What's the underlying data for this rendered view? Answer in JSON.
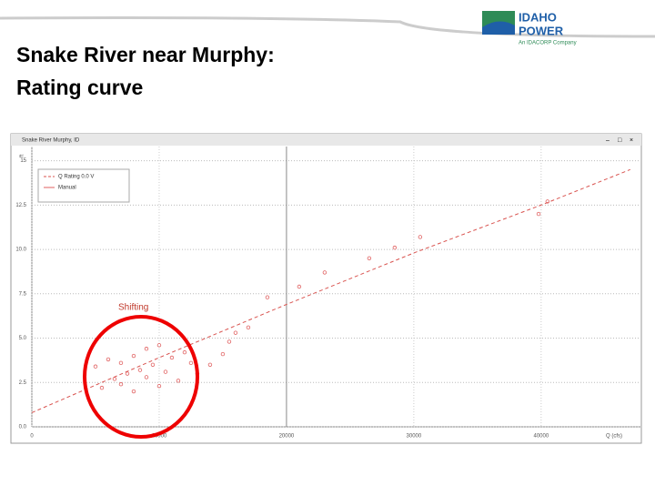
{
  "slide": {
    "title_lines": [
      "Snake River near Murphy:",
      "Rating curve"
    ],
    "logo": [
      "IDAHO",
      "POWER",
      "An IDACORP Company"
    ]
  },
  "chart_data": {
    "type": "scatter",
    "title": "Snake River Murphy, ID",
    "x_label": "Q (cfs)",
    "y_label": "ft",
    "annotation": "Shifting",
    "xlim": [
      0,
      47800
    ],
    "ylim": [
      0,
      15.8
    ],
    "xticks": [
      0,
      10000,
      20000,
      30000,
      40000
    ],
    "yticks": [
      {
        "value": 0,
        "label": "0.0"
      },
      {
        "value": 2.5,
        "label": "2.5"
      },
      {
        "value": 5,
        "label": "5.0"
      },
      {
        "value": 7.5,
        "label": "7.5"
      },
      {
        "value": 10,
        "label": "10.0"
      },
      {
        "value": 12.5,
        "label": "12.5"
      },
      15
    ],
    "grid": true,
    "series": [
      {
        "name": "Q Rating 0.0 V",
        "color": "#d9534f",
        "kind": "line",
        "x": [
          0,
          10000,
          20000,
          30000,
          40000,
          47000
        ],
        "values": [
          0.8,
          3.9,
          6.9,
          9.8,
          12.5,
          14.5
        ]
      },
      {
        "name": "Manual",
        "color": "#e06060",
        "kind": "points",
        "x": [
          5000,
          6000,
          7000,
          8000,
          9000,
          10000,
          6500,
          7500,
          8500,
          9500,
          11000,
          12000,
          5500,
          7000,
          9000,
          10500,
          12500,
          8000,
          10000,
          11500,
          13000,
          14000,
          15000,
          16000,
          17000,
          15500,
          18500,
          21000,
          23000,
          26500,
          28500,
          30500,
          40500,
          39800
        ],
        "values": [
          3.4,
          3.8,
          3.6,
          4.0,
          4.4,
          4.6,
          2.7,
          3.0,
          3.2,
          3.5,
          3.9,
          4.2,
          2.2,
          2.4,
          2.8,
          3.1,
          3.6,
          2.0,
          2.3,
          2.6,
          3.0,
          3.5,
          4.1,
          5.3,
          5.6,
          4.8,
          7.3,
          7.9,
          8.7,
          9.5,
          10.1,
          10.7,
          12.7,
          12.0
        ]
      }
    ]
  }
}
